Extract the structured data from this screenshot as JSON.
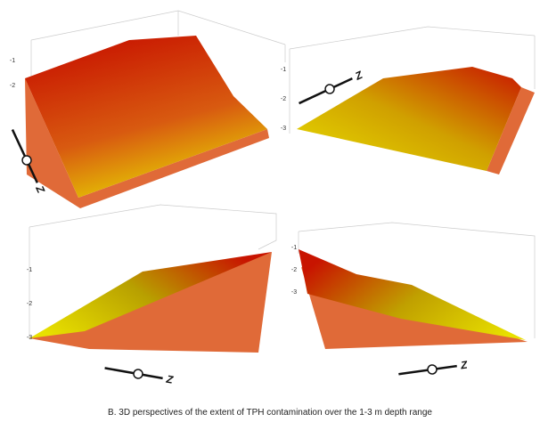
{
  "panels": [
    {
      "depth_labels": [
        "-1",
        "-2"
      ],
      "compass_label": "Z"
    },
    {
      "depth_labels": [
        "-1",
        "-2",
        "-3"
      ],
      "compass_label": "Z"
    },
    {
      "depth_labels": [
        "-1",
        "-2",
        "-3"
      ],
      "compass_label": "Z"
    },
    {
      "depth_labels": [
        "-1",
        "-2",
        "-3"
      ],
      "compass_label": "Z"
    }
  ],
  "caption": "B. 3D perspectives of the extent of TPH contamination over the 1-3 m depth range"
}
